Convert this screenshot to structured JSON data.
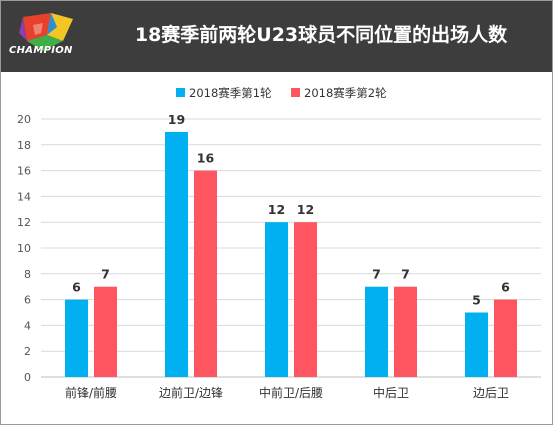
{
  "header": {
    "title": "18赛季前两轮U23球员不同位置的出场人数",
    "logo_text": "CHAMPION"
  },
  "colors": {
    "header_bg": "#3d3d3d",
    "series_1": "#00b0f0",
    "series_2": "#ff5561",
    "grid": "#d9d9d9"
  },
  "chart_data": {
    "type": "bar",
    "title": "18赛季前两轮U23球员不同位置的出场人数",
    "xlabel": "",
    "ylabel": "",
    "categories": [
      "前锋/前腰",
      "边前卫/边锋",
      "中前卫/后腰",
      "中后卫",
      "边后卫"
    ],
    "series": [
      {
        "name": "2018赛季第1轮",
        "values": [
          6,
          19,
          12,
          7,
          5
        ],
        "color": "#00b0f0"
      },
      {
        "name": "2018赛季第2轮",
        "values": [
          7,
          16,
          12,
          7,
          6
        ],
        "color": "#ff5561"
      }
    ],
    "ylim": [
      0,
      20
    ],
    "yticks": [
      0,
      2,
      4,
      6,
      8,
      10,
      12,
      14,
      16,
      18,
      20
    ],
    "grid": true,
    "legend_position": "top-center",
    "data_labels": true
  }
}
